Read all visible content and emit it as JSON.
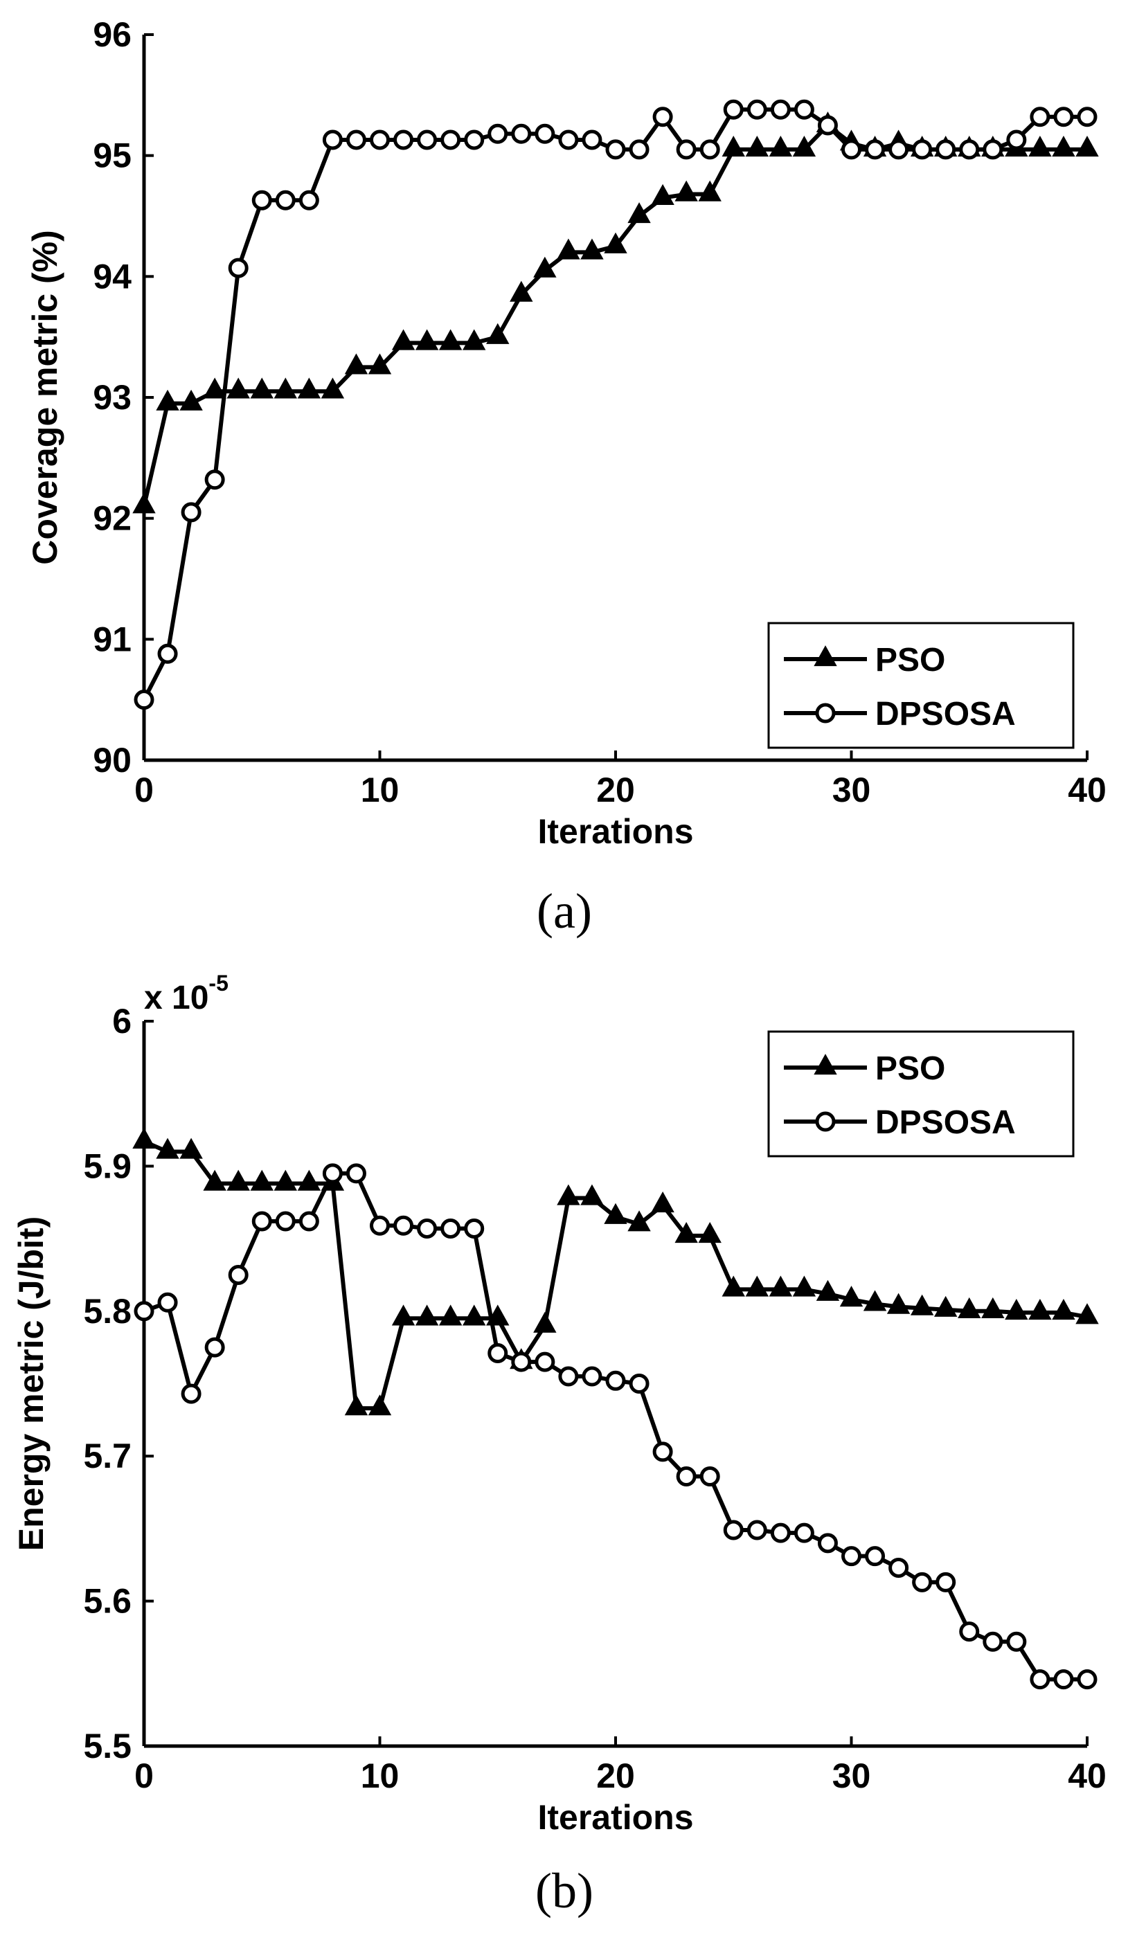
{
  "chart_data": [
    {
      "type": "line",
      "caption": "(a)",
      "title": "",
      "xlabel": "Iterations",
      "ylabel": "Coverage metric (%)",
      "xlim": [
        0,
        40
      ],
      "ylim": [
        90,
        96
      ],
      "xticks": [
        0,
        10,
        20,
        30,
        40
      ],
      "yticks": [
        90,
        91,
        92,
        93,
        94,
        95,
        96
      ],
      "ytick_labels": [
        "90",
        "91",
        "92",
        "93",
        "94",
        "95",
        "96"
      ],
      "y_multiplier": "",
      "grid": false,
      "legend_position": "bottom-right",
      "x": [
        0,
        1,
        2,
        3,
        4,
        5,
        6,
        7,
        8,
        9,
        10,
        11,
        12,
        13,
        14,
        15,
        16,
        17,
        18,
        19,
        20,
        21,
        22,
        23,
        24,
        25,
        26,
        27,
        28,
        29,
        30,
        31,
        32,
        33,
        34,
        35,
        36,
        37,
        38,
        39,
        40
      ],
      "series": [
        {
          "name": "PSO",
          "marker": "triangle",
          "values": [
            92.1,
            92.95,
            92.95,
            93.05,
            93.05,
            93.05,
            93.05,
            93.05,
            93.05,
            93.25,
            93.25,
            93.45,
            93.45,
            93.45,
            93.45,
            93.5,
            93.85,
            94.05,
            94.2,
            94.2,
            94.25,
            94.5,
            94.65,
            94.68,
            94.68,
            95.05,
            95.05,
            95.05,
            95.05,
            95.25,
            95.1,
            95.05,
            95.1,
            95.05,
            95.05,
            95.05,
            95.05,
            95.05,
            95.05,
            95.05,
            95.05
          ]
        },
        {
          "name": "DPSOSA",
          "marker": "circle",
          "values": [
            90.5,
            90.88,
            92.05,
            92.32,
            94.07,
            94.63,
            94.63,
            94.63,
            95.13,
            95.13,
            95.13,
            95.13,
            95.13,
            95.13,
            95.13,
            95.18,
            95.18,
            95.18,
            95.13,
            95.13,
            95.05,
            95.05,
            95.32,
            95.05,
            95.05,
            95.38,
            95.38,
            95.38,
            95.38,
            95.25,
            95.05,
            95.05,
            95.05,
            95.05,
            95.05,
            95.05,
            95.05,
            95.13,
            95.32,
            95.32,
            95.32
          ]
        }
      ]
    },
    {
      "type": "line",
      "caption": "(b)",
      "title": "",
      "xlabel": "Iterations",
      "ylabel": "Energy metric (J/bit)",
      "xlim": [
        0,
        40
      ],
      "ylim": [
        5.5,
        6.0
      ],
      "xticks": [
        0,
        10,
        20,
        30,
        40
      ],
      "yticks": [
        5.5,
        5.6,
        5.7,
        5.8,
        5.9,
        6.0
      ],
      "ytick_labels": [
        "5.5",
        "5.6",
        "5.7",
        "5.8",
        "5.9",
        "6"
      ],
      "y_multiplier": {
        "base": "x 10",
        "exponent": "-5"
      },
      "grid": false,
      "legend_position": "top-right",
      "x": [
        0,
        1,
        2,
        3,
        4,
        5,
        6,
        7,
        8,
        9,
        10,
        11,
        12,
        13,
        14,
        15,
        16,
        17,
        18,
        19,
        20,
        21,
        22,
        23,
        24,
        25,
        26,
        27,
        28,
        29,
        30,
        31,
        32,
        33,
        34,
        35,
        36,
        37,
        38,
        39,
        40
      ],
      "series": [
        {
          "name": "PSO",
          "marker": "triangle",
          "values": [
            5.917,
            5.91,
            5.91,
            5.888,
            5.888,
            5.888,
            5.888,
            5.888,
            5.888,
            5.733,
            5.733,
            5.795,
            5.795,
            5.795,
            5.795,
            5.795,
            5.765,
            5.79,
            5.878,
            5.878,
            5.865,
            5.86,
            5.873,
            5.852,
            5.852,
            5.815,
            5.815,
            5.815,
            5.815,
            5.812,
            5.808,
            5.805,
            5.803,
            5.802,
            5.801,
            5.8,
            5.8,
            5.799,
            5.799,
            5.799,
            5.796
          ]
        },
        {
          "name": "DPSOSA",
          "marker": "circle",
          "values": [
            5.8,
            5.806,
            5.743,
            5.775,
            5.825,
            5.862,
            5.862,
            5.862,
            5.895,
            5.895,
            5.859,
            5.859,
            5.857,
            5.857,
            5.857,
            5.771,
            5.765,
            5.765,
            5.755,
            5.755,
            5.752,
            5.75,
            5.703,
            5.686,
            5.686,
            5.649,
            5.649,
            5.647,
            5.647,
            5.64,
            5.631,
            5.631,
            5.623,
            5.613,
            5.613,
            5.579,
            5.572,
            5.572,
            5.546,
            5.546,
            5.546
          ]
        }
      ]
    }
  ]
}
